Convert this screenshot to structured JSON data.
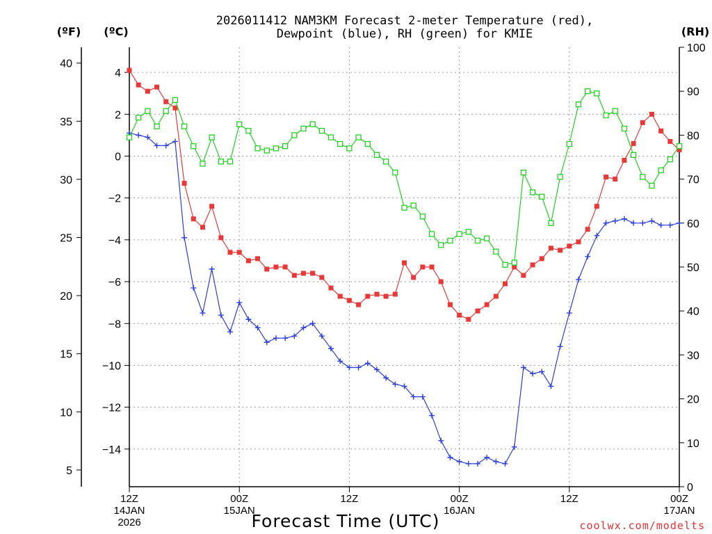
{
  "chart_data": {
    "type": "line",
    "title_line1": "2026011412 NAM3KM Forecast 2-meter Temperature (red),",
    "title_line2": "Dewpoint (blue), RH (green) for KMIE",
    "xlabel": "Forecast Time (UTC)",
    "credit": "coolwx.com/modelts",
    "units": {
      "fahrenheit": "(ºF)",
      "celsius": "(ºC)",
      "rh": "(RH)"
    },
    "x_range_hours": [
      0,
      60
    ],
    "x_ticks": [
      {
        "hour": 0,
        "line1": "12Z",
        "line2": "14JAN",
        "line3": "2026"
      },
      {
        "hour": 12,
        "line1": "00Z",
        "line2": "15JAN",
        "line3": ""
      },
      {
        "hour": 24,
        "line1": "12Z",
        "line2": "",
        "line3": ""
      },
      {
        "hour": 36,
        "line1": "00Z",
        "line2": "16JAN",
        "line3": ""
      },
      {
        "hour": 48,
        "line1": "12Z",
        "line2": "",
        "line3": ""
      },
      {
        "hour": 60,
        "line1": "00Z",
        "line2": "17JAN",
        "line3": ""
      }
    ],
    "y_celsius": {
      "range": [
        -15.8,
        5.2
      ],
      "ticks": [
        4,
        2,
        0,
        -2,
        -4,
        -6,
        -8,
        -10,
        -12,
        -14
      ],
      "tick_labels": [
        "4",
        "2",
        "0",
        "−2",
        "−4",
        "−6",
        "−8",
        "−10",
        "−12",
        "−14"
      ]
    },
    "y_fahrenheit": {
      "ticks": [
        40,
        35,
        30,
        25,
        20,
        15,
        10,
        5
      ],
      "tick_labels": [
        "40",
        "35",
        "30",
        "25",
        "20",
        "15",
        "10",
        "5"
      ]
    },
    "y_rh": {
      "range": [
        0,
        100
      ],
      "ticks": [
        100,
        90,
        80,
        70,
        60,
        50,
        40,
        30,
        20,
        10,
        0
      ],
      "tick_labels": [
        "100",
        "90",
        "80",
        "70",
        "60",
        "50",
        "40",
        "30",
        "20",
        "10",
        "0"
      ]
    },
    "series": [
      {
        "name": "2-meter Temperature",
        "axis": "celsius",
        "color": "#e83838",
        "marker": "filled-square",
        "values": [
          4.1,
          3.4,
          3.1,
          3.3,
          2.6,
          2.3,
          -1.3,
          -3.0,
          -3.4,
          -2.4,
          -3.9,
          -4.6,
          -4.6,
          -5.0,
          -4.9,
          -5.4,
          -5.3,
          -5.3,
          -5.7,
          -5.6,
          -5.6,
          -5.8,
          -6.3,
          -6.7,
          -6.9,
          -7.1,
          -6.7,
          -6.6,
          -6.7,
          -6.6,
          -5.1,
          -5.8,
          -5.3,
          -5.3,
          -6.0,
          -7.1,
          -7.6,
          -7.8,
          -7.4,
          -7.1,
          -6.7,
          -6.1,
          -5.3,
          -5.7,
          -5.2,
          -4.9,
          -4.4,
          -4.5,
          -4.3,
          -4.1,
          -3.5,
          -2.4,
          -1.0,
          -1.1,
          -0.2,
          0.6,
          1.6,
          2.0,
          1.2,
          0.7,
          0.3
        ]
      },
      {
        "name": "Dewpoint",
        "axis": "celsius",
        "color": "#2a3de0",
        "marker": "plus",
        "values": [
          1.1,
          1.0,
          0.9,
          0.5,
          0.5,
          0.7,
          -3.9,
          -6.3,
          -7.5,
          -5.4,
          -7.6,
          -8.4,
          -7.0,
          -7.8,
          -8.2,
          -8.9,
          -8.7,
          -8.7,
          -8.6,
          -8.2,
          -8.0,
          -8.6,
          -9.2,
          -9.8,
          -10.1,
          -10.1,
          -9.9,
          -10.2,
          -10.6,
          -10.9,
          -11.0,
          -11.5,
          -11.5,
          -12.4,
          -13.6,
          -14.4,
          -14.6,
          -14.7,
          -14.7,
          -14.4,
          -14.6,
          -14.7,
          -13.9,
          -10.1,
          -10.4,
          -10.3,
          -11.0,
          -9.1,
          -7.5,
          -5.9,
          -4.8,
          -3.8,
          -3.2,
          -3.1,
          -3.0,
          -3.2,
          -3.2,
          -3.1,
          -3.3,
          -3.3,
          -3.2
        ]
      },
      {
        "name": "RH",
        "axis": "rh",
        "color": "#1ed21e",
        "marker": "open-square",
        "values": [
          79.5,
          84,
          85.5,
          82,
          85.5,
          88,
          82,
          77.5,
          73.5,
          79.5,
          74,
          74,
          82.5,
          81,
          77,
          76.5,
          77,
          77.5,
          80,
          81.5,
          82.5,
          81,
          79.5,
          78,
          77,
          79.5,
          78,
          75.5,
          74,
          71.5,
          63.5,
          64,
          61.5,
          57.5,
          55,
          56,
          57.5,
          58,
          56,
          56.5,
          53.5,
          50.5,
          51,
          71.5,
          67,
          66,
          60,
          70.5,
          78,
          87,
          90,
          89.5,
          84.5,
          85.5,
          81.5,
          75.5,
          70.5,
          68.5,
          72,
          74.5,
          77.5
        ]
      }
    ]
  }
}
